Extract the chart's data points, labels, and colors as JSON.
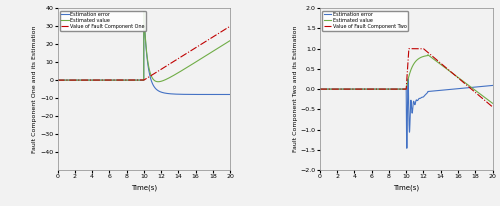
{
  "left": {
    "xlabel": "Time(s)",
    "ylabel": "Fault Component One and its Estimation",
    "xlim": [
      0,
      20
    ],
    "ylim": [
      -50,
      40
    ],
    "yticks": [
      -40,
      -30,
      -20,
      -10,
      0,
      10,
      20,
      30,
      40
    ],
    "xticks": [
      0,
      2,
      4,
      6,
      8,
      10,
      12,
      14,
      16,
      18,
      20
    ],
    "legend": [
      "Estimation error",
      "Estimated value",
      "Value of Fault Component One"
    ],
    "colors": [
      "#4472C4",
      "#70AD47",
      "#C00000"
    ],
    "linestyles": [
      "-",
      "-",
      "-."
    ]
  },
  "right": {
    "xlabel": "Time(s)",
    "ylabel": "Fault Component Two and its Estimation",
    "xlim": [
      0,
      20
    ],
    "ylim": [
      -2,
      2
    ],
    "yticks": [
      -2.0,
      -1.5,
      -1.0,
      -0.5,
      0.0,
      0.5,
      1.0,
      1.5,
      2.0
    ],
    "xticks": [
      0,
      2,
      4,
      6,
      8,
      10,
      12,
      14,
      16,
      18,
      20
    ],
    "legend": [
      "Estimation error",
      "Estimated value",
      "Value of Fault Component Two"
    ],
    "colors": [
      "#4472C4",
      "#70AD47",
      "#C00000"
    ],
    "linestyles": [
      "-",
      "-",
      "-."
    ]
  },
  "fault_start": 10.0,
  "t_end": 20.0,
  "dt": 0.005,
  "bg_color": "#F2F2F2",
  "linewidth": 0.8
}
